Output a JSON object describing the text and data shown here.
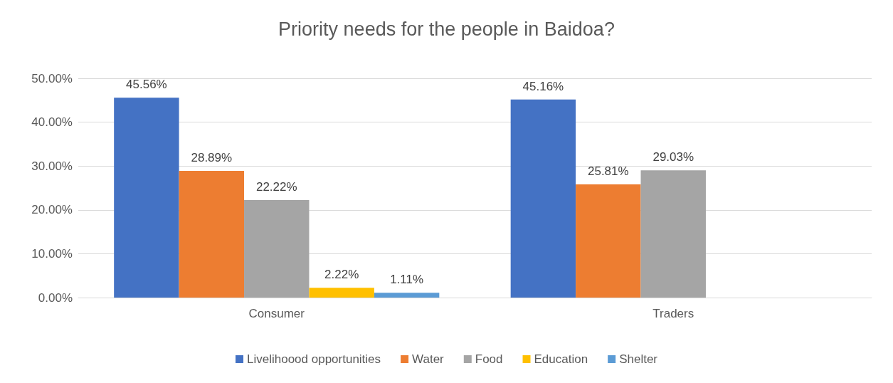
{
  "chart_data": {
    "type": "bar",
    "title": "Priority needs for the people in Baidoa?",
    "categories": [
      "Consumer",
      "Traders"
    ],
    "series": [
      {
        "name": "Livelihoood opportunities",
        "color": "#4472c4",
        "values": [
          45.56,
          45.16
        ],
        "value_labels": [
          "45.56%",
          "45.16%"
        ]
      },
      {
        "name": "Water",
        "color": "#ed7d31",
        "values": [
          28.89,
          25.81
        ],
        "value_labels": [
          "28.89%",
          "25.81%"
        ]
      },
      {
        "name": "Food",
        "color": "#a5a5a5",
        "values": [
          22.22,
          29.03
        ],
        "value_labels": [
          "22.22%",
          "29.03%"
        ]
      },
      {
        "name": "Education",
        "color": "#ffc000",
        "values": [
          2.22,
          null
        ],
        "value_labels": [
          "2.22%",
          null
        ]
      },
      {
        "name": "Shelter",
        "color": "#5b9bd5",
        "values": [
          1.11,
          null
        ],
        "value_labels": [
          "1.11%",
          null
        ]
      }
    ],
    "ylim": [
      0,
      50
    ],
    "yticks": [
      {
        "value": 0,
        "label": "0.00%"
      },
      {
        "value": 10,
        "label": "10.00%"
      },
      {
        "value": 20,
        "label": "20.00%"
      },
      {
        "value": 30,
        "label": "30.00%"
      },
      {
        "value": 40,
        "label": "40.00%"
      },
      {
        "value": 50,
        "label": "50.00%"
      }
    ],
    "grid": "y",
    "legend": "bottom"
  }
}
